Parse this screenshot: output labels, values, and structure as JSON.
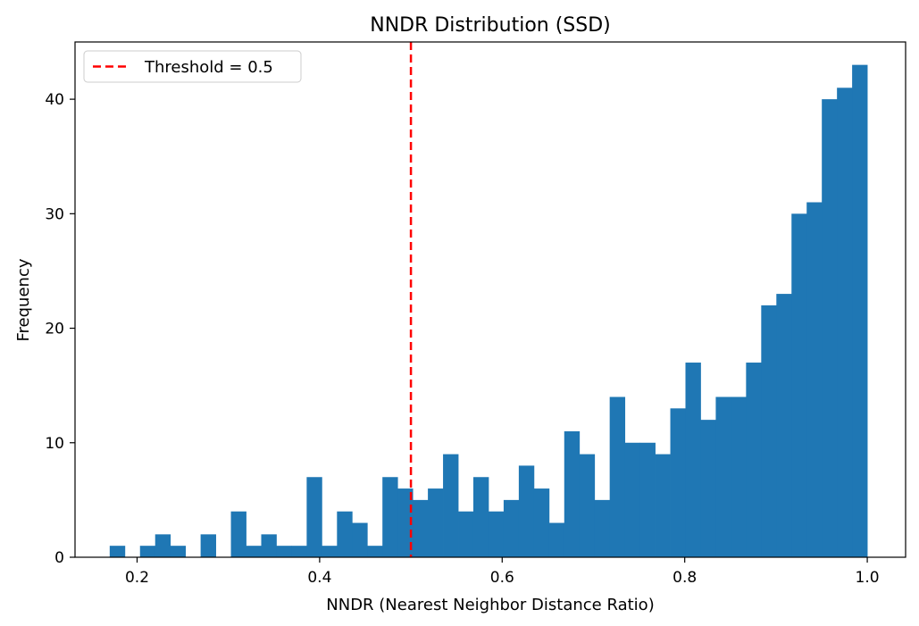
{
  "chart_data": {
    "type": "bar",
    "title": "NNDR Distribution (SSD)",
    "xlabel": "NNDR (Nearest Neighbor Distance Ratio)",
    "ylabel": "Frequency",
    "xlim": [
      0.132,
      1.042
    ],
    "ylim": [
      0,
      45
    ],
    "xticks": [
      "0.2",
      "0.4",
      "0.6",
      "0.8",
      "1.0"
    ],
    "yticks": [
      "0",
      "10",
      "20",
      "30",
      "40"
    ],
    "bar_color": "#1f77b4",
    "bin_start": 0.17,
    "bin_width": 0.0166,
    "values": [
      1,
      0,
      1,
      2,
      1,
      0,
      2,
      0,
      4,
      1,
      2,
      1,
      1,
      7,
      1,
      4,
      3,
      1,
      7,
      6,
      5,
      6,
      9,
      4,
      7,
      4,
      5,
      8,
      6,
      3,
      11,
      9,
      5,
      14,
      10,
      10,
      9,
      13,
      17,
      12,
      14,
      14,
      17,
      22,
      23,
      30,
      31,
      40,
      41,
      43
    ],
    "threshold": {
      "value": 0.5,
      "color": "#ff0000",
      "label": "Threshold = 0.5"
    },
    "legend_position": "top-left",
    "grid": false
  }
}
